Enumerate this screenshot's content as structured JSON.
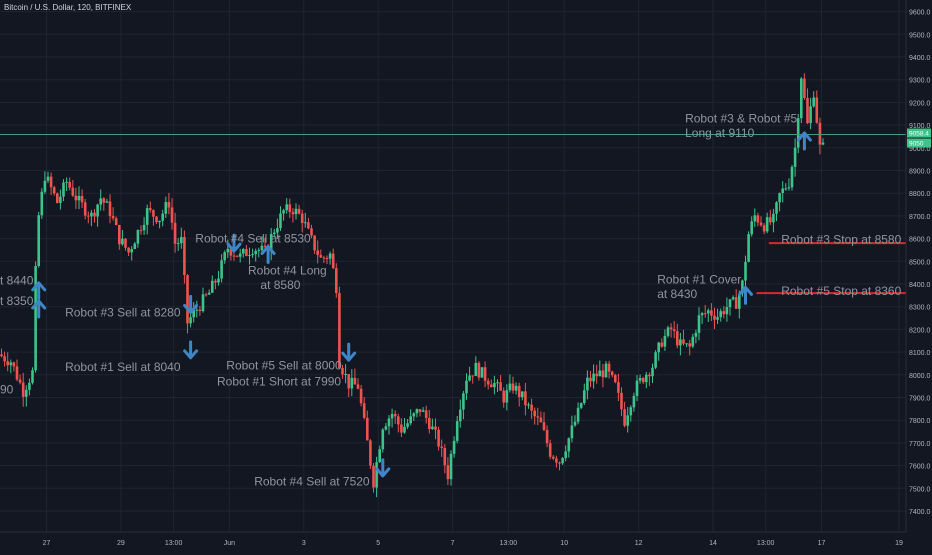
{
  "title": "Bitcoin / U.S. Dollar, 120, BITFINEX",
  "colors": {
    "background": "#131722",
    "grid": "#1f2433",
    "up": "#26a69a",
    "up_bright": "#3cc48a",
    "down": "#ef5350",
    "price_line": "#3e9e7c",
    "price_tag": "#3cc48a",
    "stop_line": "#e1262b",
    "annotation_text": "#8f949e",
    "arrow": "#3f86c8",
    "axis_text": "#b2b5be"
  },
  "chart_data": {
    "type": "candlestick",
    "ylim": [
      7320,
      9620
    ],
    "y_ticks": [
      7400,
      7500,
      7600,
      7700,
      7800,
      7900,
      8000,
      8100,
      8200,
      8300,
      8400,
      8500,
      8600,
      8700,
      8800,
      8900,
      9000,
      9100,
      9200,
      9300,
      9400,
      9500,
      9600
    ],
    "y_tick_labels": [
      "7400.0",
      "7500.0",
      "7600.0",
      "7700.0",
      "7800.0",
      "7900.0",
      "8000.0",
      "8100.0",
      "8200.0",
      "8300.0",
      "8400.0",
      "8500.0",
      "8600.0",
      "8700.0",
      "8800.0",
      "8900.0",
      "9000.0",
      "9100.0",
      "9200.0",
      "9300.0",
      "9400.0",
      "9500.0",
      "9600.0"
    ],
    "x_range": [
      0,
      300
    ],
    "x_ticks": [
      {
        "x": 15,
        "label": "27"
      },
      {
        "x": 39,
        "label": "29"
      },
      {
        "x": 56,
        "label": "13:00"
      },
      {
        "x": 74,
        "label": "Jun"
      },
      {
        "x": 98,
        "label": "3"
      },
      {
        "x": 122,
        "label": "5"
      },
      {
        "x": 146,
        "label": "7"
      },
      {
        "x": 164,
        "label": "13:00"
      },
      {
        "x": 182,
        "label": "10"
      },
      {
        "x": 206,
        "label": "12"
      },
      {
        "x": 230,
        "label": "14"
      },
      {
        "x": 247,
        "label": "13:00"
      },
      {
        "x": 265,
        "label": "17"
      },
      {
        "x": 290,
        "label": "19"
      }
    ],
    "current_price": 9058.4,
    "price_tags": [
      "9058.4",
      "9050"
    ],
    "path": [
      {
        "x": 0,
        "p": 8090
      },
      {
        "x": 4,
        "p": 8060
      },
      {
        "x": 8,
        "p": 7930
      },
      {
        "x": 11,
        "p": 8010
      },
      {
        "x": 12,
        "p": 8450
      },
      {
        "x": 13,
        "p": 8700
      },
      {
        "x": 15,
        "p": 8880
      },
      {
        "x": 19,
        "p": 8760
      },
      {
        "x": 22,
        "p": 8850
      },
      {
        "x": 26,
        "p": 8760
      },
      {
        "x": 30,
        "p": 8700
      },
      {
        "x": 33,
        "p": 8780
      },
      {
        "x": 36,
        "p": 8720
      },
      {
        "x": 39,
        "p": 8600
      },
      {
        "x": 42,
        "p": 8540
      },
      {
        "x": 45,
        "p": 8630
      },
      {
        "x": 48,
        "p": 8720
      },
      {
        "x": 52,
        "p": 8690
      },
      {
        "x": 55,
        "p": 8760
      },
      {
        "x": 57,
        "p": 8580
      },
      {
        "x": 59,
        "p": 8590
      },
      {
        "x": 61,
        "p": 8230
      },
      {
        "x": 64,
        "p": 8290
      },
      {
        "x": 68,
        "p": 8360
      },
      {
        "x": 71,
        "p": 8440
      },
      {
        "x": 74,
        "p": 8560
      },
      {
        "x": 78,
        "p": 8520
      },
      {
        "x": 82,
        "p": 8560
      },
      {
        "x": 86,
        "p": 8540
      },
      {
        "x": 89,
        "p": 8640
      },
      {
        "x": 92,
        "p": 8720
      },
      {
        "x": 95,
        "p": 8730
      },
      {
        "x": 98,
        "p": 8690
      },
      {
        "x": 101,
        "p": 8590
      },
      {
        "x": 104,
        "p": 8510
      },
      {
        "x": 107,
        "p": 8530
      },
      {
        "x": 109,
        "p": 8390
      },
      {
        "x": 110,
        "p": 8060
      },
      {
        "x": 113,
        "p": 7960
      },
      {
        "x": 116,
        "p": 7950
      },
      {
        "x": 119,
        "p": 7700
      },
      {
        "x": 121,
        "p": 7530
      },
      {
        "x": 124,
        "p": 7780
      },
      {
        "x": 127,
        "p": 7830
      },
      {
        "x": 130,
        "p": 7760
      },
      {
        "x": 133,
        "p": 7800
      },
      {
        "x": 136,
        "p": 7850
      },
      {
        "x": 139,
        "p": 7790
      },
      {
        "x": 142,
        "p": 7700
      },
      {
        "x": 145,
        "p": 7560
      },
      {
        "x": 148,
        "p": 7820
      },
      {
        "x": 151,
        "p": 7990
      },
      {
        "x": 154,
        "p": 8030
      },
      {
        "x": 157,
        "p": 7990
      },
      {
        "x": 160,
        "p": 7960
      },
      {
        "x": 163,
        "p": 7900
      },
      {
        "x": 166,
        "p": 7950
      },
      {
        "x": 169,
        "p": 7900
      },
      {
        "x": 172,
        "p": 7830
      },
      {
        "x": 175,
        "p": 7780
      },
      {
        "x": 178,
        "p": 7660
      },
      {
        "x": 181,
        "p": 7620
      },
      {
        "x": 184,
        "p": 7720
      },
      {
        "x": 187,
        "p": 7830
      },
      {
        "x": 190,
        "p": 7970
      },
      {
        "x": 193,
        "p": 8000
      },
      {
        "x": 196,
        "p": 8020
      },
      {
        "x": 199,
        "p": 7950
      },
      {
        "x": 202,
        "p": 7800
      },
      {
        "x": 205,
        "p": 7930
      },
      {
        "x": 208,
        "p": 7990
      },
      {
        "x": 211,
        "p": 8040
      },
      {
        "x": 214,
        "p": 8150
      },
      {
        "x": 217,
        "p": 8200
      },
      {
        "x": 220,
        "p": 8130
      },
      {
        "x": 223,
        "p": 8120
      },
      {
        "x": 226,
        "p": 8250
      },
      {
        "x": 229,
        "p": 8280
      },
      {
        "x": 232,
        "p": 8260
      },
      {
        "x": 235,
        "p": 8300
      },
      {
        "x": 238,
        "p": 8320
      },
      {
        "x": 240,
        "p": 8400
      },
      {
        "x": 242,
        "p": 8620
      },
      {
        "x": 244,
        "p": 8700
      },
      {
        "x": 247,
        "p": 8660
      },
      {
        "x": 250,
        "p": 8680
      },
      {
        "x": 252,
        "p": 8790
      },
      {
        "x": 255,
        "p": 8850
      },
      {
        "x": 257,
        "p": 9000
      },
      {
        "x": 259,
        "p": 9320
      },
      {
        "x": 261,
        "p": 9100
      },
      {
        "x": 263,
        "p": 9250
      },
      {
        "x": 265,
        "p": 9000
      }
    ],
    "annotations": [
      {
        "text": "t 8440",
        "x": 0,
        "p": 8415,
        "align": "start"
      },
      {
        "text": "t 8350",
        "x": 0,
        "p": 8325,
        "align": "start"
      },
      {
        "text": "90",
        "x": 0,
        "p": 7935,
        "align": "start"
      },
      {
        "text": "Robot #3 Sell at 8280",
        "x": 21,
        "p": 8275,
        "align": "start"
      },
      {
        "text": "Robot #1 Sell at 8040",
        "x": 21,
        "p": 8035,
        "align": "start"
      },
      {
        "text": "Robot #4 Sell at 8530",
        "x": 63,
        "p": 8600,
        "align": "start"
      },
      {
        "text": "Robot #4 Long",
        "x": 80,
        "p": 8460,
        "align": "start"
      },
      {
        "text": "at 8580",
        "x": 84,
        "p": 8395,
        "align": "start"
      },
      {
        "text": "Robot #5 Sell at 8000",
        "x": 73,
        "p": 8040,
        "align": "start"
      },
      {
        "text": "Robot #1 Short at 7990",
        "x": 70,
        "p": 7970,
        "align": "start"
      },
      {
        "text": "Robot #4 Sell at 7520",
        "x": 82,
        "p": 7530,
        "align": "start"
      },
      {
        "text": "Robot #1 Cover",
        "x": 212,
        "p": 8420,
        "align": "start"
      },
      {
        "text": "at 8430",
        "x": 212,
        "p": 8355,
        "align": "start"
      },
      {
        "text": "Robot #3 & Robot #5",
        "x": 221,
        "p": 9130,
        "align": "start"
      },
      {
        "text": "Long at 9110",
        "x": 221,
        "p": 9065,
        "align": "start"
      },
      {
        "text": "Robot #3 Stop at 8580",
        "x": 252,
        "p": 8595,
        "align": "start"
      },
      {
        "text": "Robot #5 Stop at 8360",
        "x": 252,
        "p": 8370,
        "align": "start"
      }
    ],
    "arrows": [
      {
        "x": 12,
        "p": 8370,
        "dir": "up"
      },
      {
        "x": 12,
        "p": 8290,
        "dir": "up"
      },
      {
        "x": 61,
        "p": 8310,
        "dir": "down"
      },
      {
        "x": 61,
        "p": 8110,
        "dir": "down"
      },
      {
        "x": 75,
        "p": 8580,
        "dir": "down"
      },
      {
        "x": 86,
        "p": 8530,
        "dir": "up"
      },
      {
        "x": 112,
        "p": 8100,
        "dir": "down"
      },
      {
        "x": 123,
        "p": 7590,
        "dir": "down"
      },
      {
        "x": 240,
        "p": 8350,
        "dir": "up"
      },
      {
        "x": 259,
        "p": 9030,
        "dir": "up"
      }
    ],
    "stop_lines": [
      {
        "p": 8580,
        "x_start": 248,
        "x_end": 305
      },
      {
        "p": 8360,
        "x_start": 244,
        "x_end": 305
      }
    ]
  }
}
